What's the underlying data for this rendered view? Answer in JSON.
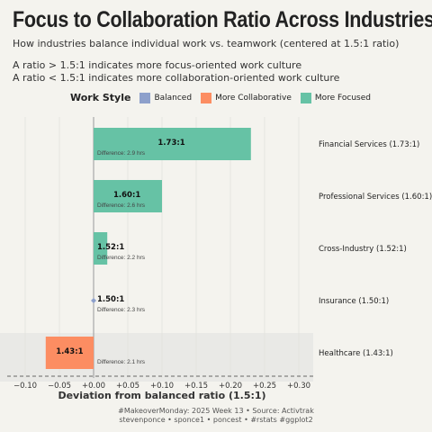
{
  "header": {
    "title": "Focus to Collaboration Ratio Across Industries",
    "subtitle": "How industries balance individual work vs. teamwork (centered at 1.5:1 ratio)",
    "note1": "A ratio > 1.5:1 indicates more focus-oriented work culture",
    "note2": "A ratio < 1.5:1 indicates more collaboration-oriented work culture"
  },
  "legend": {
    "title": "Work Style",
    "items": [
      {
        "label": "Balanced",
        "color": "#8da0cb"
      },
      {
        "label": "More Collaborative",
        "color": "#fc8d62"
      },
      {
        "label": "More Focused",
        "color": "#66c2a5"
      }
    ]
  },
  "caption": {
    "line1": "#MakeoverMonday: 2025 Week 13 • Source: Activtrak",
    "line2": "stevenponce • sponce1 • poncest • #rstats #ggplot2"
  },
  "chart_data": {
    "type": "bar",
    "orientation": "horizontal",
    "xlabel": "Deviation from balanced ratio (1.5:1)",
    "xlim": [
      -0.11,
      0.31
    ],
    "xticks": [
      -0.1,
      -0.05,
      0.0,
      0.05,
      0.1,
      0.15,
      0.2,
      0.25,
      0.3
    ],
    "xtick_labels": [
      "−0.10",
      "−0.05",
      "+0.00",
      "+0.05",
      "+0.10",
      "+0.15",
      "+0.20",
      "+0.25",
      "+0.30"
    ],
    "categories": [
      "Financial Services (1.73:1)",
      "Professional Services (1.60:1)",
      "Cross-Industry (1.52:1)",
      "Insurance (1.50:1)",
      "Healthcare (1.43:1)"
    ],
    "values": [
      0.23,
      0.1,
      0.02,
      0.0,
      -0.07
    ],
    "ratio_labels": [
      "1.73:1",
      "1.60:1",
      "1.52:1",
      "1.50:1",
      "1.43:1"
    ],
    "difference_labels": [
      "Difference: 2.9 hrs",
      "Difference: 2.6 hrs",
      "Difference: 2.2 hrs",
      "Difference: 2.3 hrs",
      "Difference: 2.1 hrs"
    ],
    "styles": [
      "More Focused",
      "More Focused",
      "More Focused",
      "Balanced",
      "More Collaborative"
    ],
    "highlighted_category": "Healthcare (1.43:1)"
  }
}
